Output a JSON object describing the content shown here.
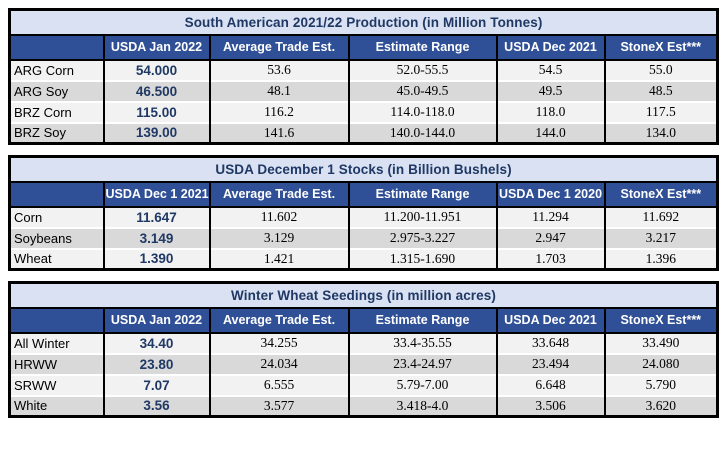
{
  "colors": {
    "header_bg": "#2F4F96",
    "title_bg": "#D9E1F2",
    "accent_text": "#1F3864",
    "row_light": "#F2F2F2",
    "row_alt": "#D9D9D9",
    "border": "#000000",
    "row_separator": "#FFFFFF"
  },
  "tables": [
    {
      "title": "South American 2021/22 Production (in Million Tonnes)",
      "columns": [
        "",
        "USDA Jan 2022",
        "Average Trade Est.",
        "Estimate Range",
        "USDA Dec 2021",
        "StoneX Est***"
      ],
      "rows": [
        {
          "label": "ARG Corn",
          "values": [
            "54.000",
            "53.6",
            "52.0-55.5",
            "54.5",
            "55.0"
          ]
        },
        {
          "label": "ARG Soy",
          "values": [
            "46.500",
            "48.1",
            "45.0-49.5",
            "49.5",
            "48.5"
          ]
        },
        {
          "label": "BRZ Corn",
          "values": [
            "115.00",
            "116.2",
            "114.0-118.0",
            "118.0",
            "117.5"
          ]
        },
        {
          "label": "BRZ Soy",
          "values": [
            "139.00",
            "141.6",
            "140.0-144.0",
            "144.0",
            "134.0"
          ]
        }
      ]
    },
    {
      "title": "USDA December 1 Stocks (in Billion Bushels)",
      "columns": [
        "",
        "USDA Dec 1 2021",
        "Average Trade Est.",
        "Estimate Range",
        "USDA Dec 1 2020",
        "StoneX Est***"
      ],
      "rows": [
        {
          "label": "Corn",
          "values": [
            "11.647",
            "11.602",
            "11.200-11.951",
            "11.294",
            "11.692"
          ]
        },
        {
          "label": "Soybeans",
          "values": [
            "3.149",
            "3.129",
            "2.975-3.227",
            "2.947",
            "3.217"
          ]
        },
        {
          "label": "Wheat",
          "values": [
            "1.390",
            "1.421",
            "1.315-1.690",
            "1.703",
            "1.396"
          ]
        }
      ]
    },
    {
      "title": "Winter Wheat Seedings (in million acres)",
      "columns": [
        "",
        "USDA Jan 2022",
        "Average Trade Est.",
        "Estimate Range",
        "USDA Dec 2021",
        "StoneX Est***"
      ],
      "rows": [
        {
          "label": "All Winter",
          "values": [
            "34.40",
            "34.255",
            "33.4-35.55",
            "33.648",
            "33.490"
          ]
        },
        {
          "label": "HRWW",
          "values": [
            "23.80",
            "24.034",
            "23.4-24.97",
            "23.494",
            "24.080"
          ]
        },
        {
          "label": "SRWW",
          "values": [
            "7.07",
            "6.555",
            "5.79-7.00",
            "6.648",
            "5.790"
          ]
        },
        {
          "label": "White",
          "values": [
            "3.56",
            "3.577",
            "3.418-4.0",
            "3.506",
            "3.620"
          ]
        }
      ]
    }
  ]
}
